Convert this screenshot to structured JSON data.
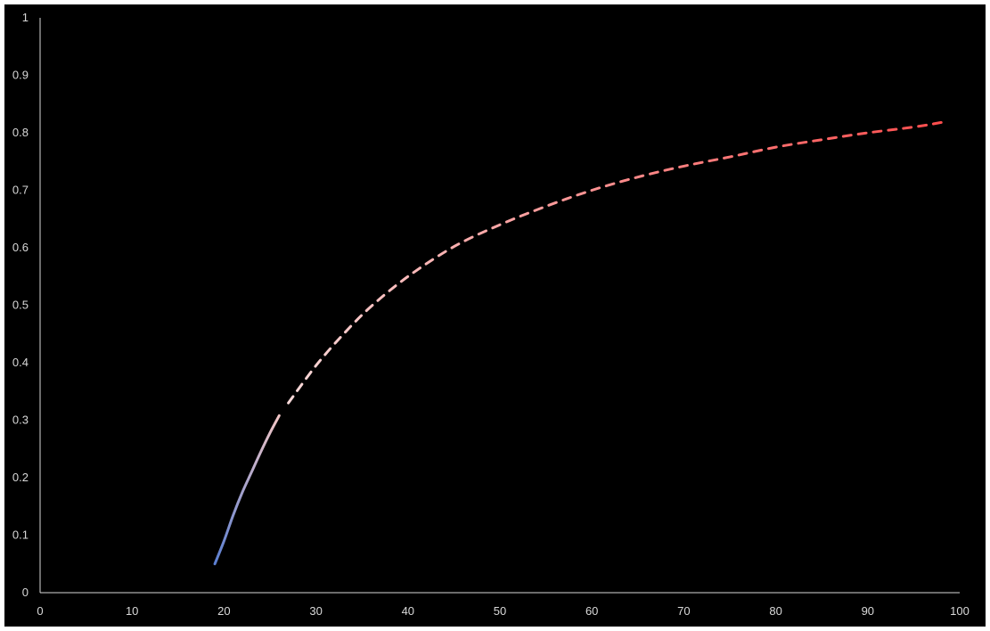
{
  "chart_data": {
    "type": "line",
    "title": "",
    "xlabel": "",
    "ylabel": "",
    "xlim": [
      0,
      100
    ],
    "ylim": [
      0,
      1
    ],
    "x_ticks": [
      "0",
      "10",
      "20",
      "30",
      "40",
      "50",
      "60",
      "70",
      "80",
      "90",
      "100"
    ],
    "y_ticks": [
      "0",
      "0.1",
      "0.2",
      "0.3",
      "0.4",
      "0.5",
      "0.6",
      "0.7",
      "0.8",
      "0.9",
      "1"
    ],
    "grid": false,
    "legend": "none",
    "background_color": "#000000",
    "axis_color": "#d9d9d9",
    "series": [
      {
        "style": "solid",
        "gradient_colors": [
          "#5b7fd1",
          "#f2c6c6"
        ],
        "points": [
          {
            "x": 19,
            "y": 0.05
          },
          {
            "x": 20,
            "y": 0.09
          },
          {
            "x": 21,
            "y": 0.135
          },
          {
            "x": 22,
            "y": 0.175
          },
          {
            "x": 23,
            "y": 0.21
          },
          {
            "x": 24,
            "y": 0.245
          },
          {
            "x": 25,
            "y": 0.278
          },
          {
            "x": 26,
            "y": 0.308
          }
        ]
      },
      {
        "style": "dashed",
        "gradient_colors": [
          "#f7d9d9",
          "#ff4d4d"
        ],
        "points": [
          {
            "x": 27,
            "y": 0.33
          },
          {
            "x": 30,
            "y": 0.395
          },
          {
            "x": 33,
            "y": 0.45
          },
          {
            "x": 36,
            "y": 0.498
          },
          {
            "x": 40,
            "y": 0.55
          },
          {
            "x": 45,
            "y": 0.602
          },
          {
            "x": 50,
            "y": 0.64
          },
          {
            "x": 55,
            "y": 0.672
          },
          {
            "x": 60,
            "y": 0.7
          },
          {
            "x": 65,
            "y": 0.723
          },
          {
            "x": 70,
            "y": 0.742
          },
          {
            "x": 75,
            "y": 0.758
          },
          {
            "x": 80,
            "y": 0.775
          },
          {
            "x": 85,
            "y": 0.788
          },
          {
            "x": 90,
            "y": 0.8
          },
          {
            "x": 95,
            "y": 0.81
          },
          {
            "x": 98,
            "y": 0.818
          }
        ]
      }
    ]
  }
}
